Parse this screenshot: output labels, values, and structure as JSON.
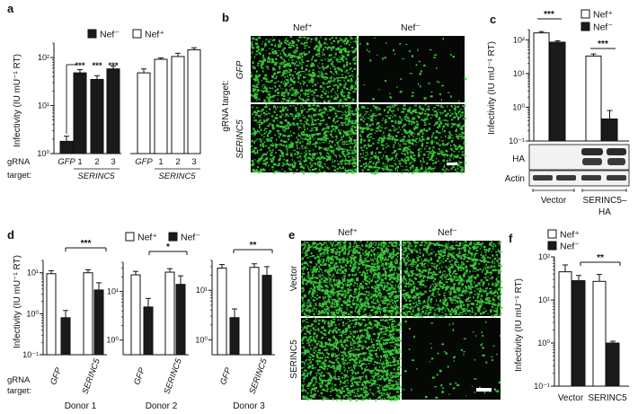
{
  "panel_letters": [
    "a",
    "b",
    "c",
    "d",
    "e",
    "f"
  ],
  "legend": {
    "neg": "Nef⁻",
    "pos": "Nef⁺"
  },
  "ylabel_infectivity": "Infectivity (IU mU⁻¹ RT)",
  "grna_target_label_line1": "gRNA",
  "grna_target_label_line2": "target:",
  "gfp": "GFP",
  "serinc5": "SERINC5",
  "stars3": "***",
  "stars2": "**",
  "stars1": "*",
  "tick_1e0": "10⁰",
  "tick_1e1": "10¹",
  "tick_1e2": "10²",
  "tick_1em1": "10⁻¹",
  "panel_b": {
    "col_pos": "Nef⁺",
    "col_neg": "Nef⁻",
    "side_label": "gRNA target:",
    "row1": "GFP",
    "row2": "SERINC5"
  },
  "panel_c": {
    "blot_ha": "HA",
    "blot_actin": "Actin",
    "vector": "Vector",
    "serinc5_ha_line1": "SERINC5–",
    "serinc5_ha_line2": "HA"
  },
  "panel_d": {
    "donors": [
      "Donor 1",
      "Donor 2",
      "Donor 3"
    ]
  },
  "panel_e": {
    "col_pos": "Nef⁺",
    "col_neg": "Nef⁻",
    "row1": "Vector",
    "row2": "SERINC5"
  },
  "panel_f": {
    "vector": "Vector",
    "serinc5": "SERINC5"
  },
  "colors": {
    "neg": "#1a1a1a",
    "pos": "#ffffff",
    "micro_bg": "#050805",
    "cell": "#3ddc3d"
  },
  "chart_data": [
    {
      "panel": "a",
      "type": "bar",
      "scale": "log",
      "ylim": [
        1,
        200
      ],
      "categories": [
        "GFP",
        "1",
        "2",
        "3",
        "GFP",
        "1",
        "2",
        "3"
      ],
      "series": [
        {
          "name": "Nef⁻",
          "values": [
            1.8,
            48,
            35,
            58,
            null,
            null,
            null,
            null
          ],
          "errors": [
            0.5,
            8,
            7,
            8,
            null,
            null,
            null,
            null
          ]
        },
        {
          "name": "Nef⁺",
          "values": [
            null,
            null,
            null,
            null,
            48,
            92,
            105,
            145
          ],
          "errors": [
            null,
            null,
            null,
            null,
            10,
            6,
            18,
            15
          ]
        }
      ],
      "significance": [
        "***",
        "***",
        "***"
      ]
    },
    {
      "panel": "c",
      "type": "bar",
      "scale": "log",
      "ylim": [
        0.1,
        200
      ],
      "categories": [
        "Vector",
        "SERINC5–HA"
      ],
      "series": [
        {
          "name": "Nef⁺",
          "values": [
            160,
            33
          ],
          "errors": [
            15,
            5
          ]
        },
        {
          "name": "Nef⁻",
          "values": [
            85,
            0.45
          ],
          "errors": [
            8,
            0.35
          ]
        }
      ],
      "significance": [
        "***",
        "***"
      ]
    },
    {
      "panel": "d",
      "type": "bar",
      "scale": "log",
      "subplots": [
        {
          "title": "Donor 1",
          "ylim": [
            0.1,
            20
          ],
          "categories": [
            "GFP",
            "SERINC5"
          ],
          "series": [
            {
              "name": "Nef⁺",
              "values": [
                9.5,
                10
              ]
            },
            {
              "name": "Nef⁻",
              "values": [
                0.8,
                3.8
              ]
            }
          ],
          "significance": "***"
        },
        {
          "title": "Donor 2",
          "ylim": [
            0.5,
            40
          ],
          "categories": [
            "GFP",
            "SERINC5"
          ],
          "series": [
            {
              "name": "Nef⁺",
              "values": [
                22,
                25
              ]
            },
            {
              "name": "Nef⁻",
              "values": [
                4.8,
                14
              ]
            }
          ],
          "significance": "*"
        },
        {
          "title": "Donor 3",
          "ylim": [
            0.5,
            40
          ],
          "categories": [
            "GFP",
            "SERINC5"
          ],
          "series": [
            {
              "name": "Nef⁺",
              "values": [
                28,
                29
              ]
            },
            {
              "name": "Nef⁻",
              "values": [
                2.8,
                20
              ]
            }
          ],
          "significance": "**"
        }
      ]
    },
    {
      "panel": "f",
      "type": "bar",
      "scale": "log",
      "ylim": [
        0.1,
        100
      ],
      "categories": [
        "Vector",
        "SERINC5"
      ],
      "series": [
        {
          "name": "Nef⁺",
          "values": [
            45,
            27
          ],
          "errors": [
            20,
            12
          ]
        },
        {
          "name": "Nef⁻",
          "values": [
            28,
            1.0
          ],
          "errors": [
            9,
            0.1
          ]
        }
      ],
      "significance": [
        "**"
      ]
    }
  ]
}
